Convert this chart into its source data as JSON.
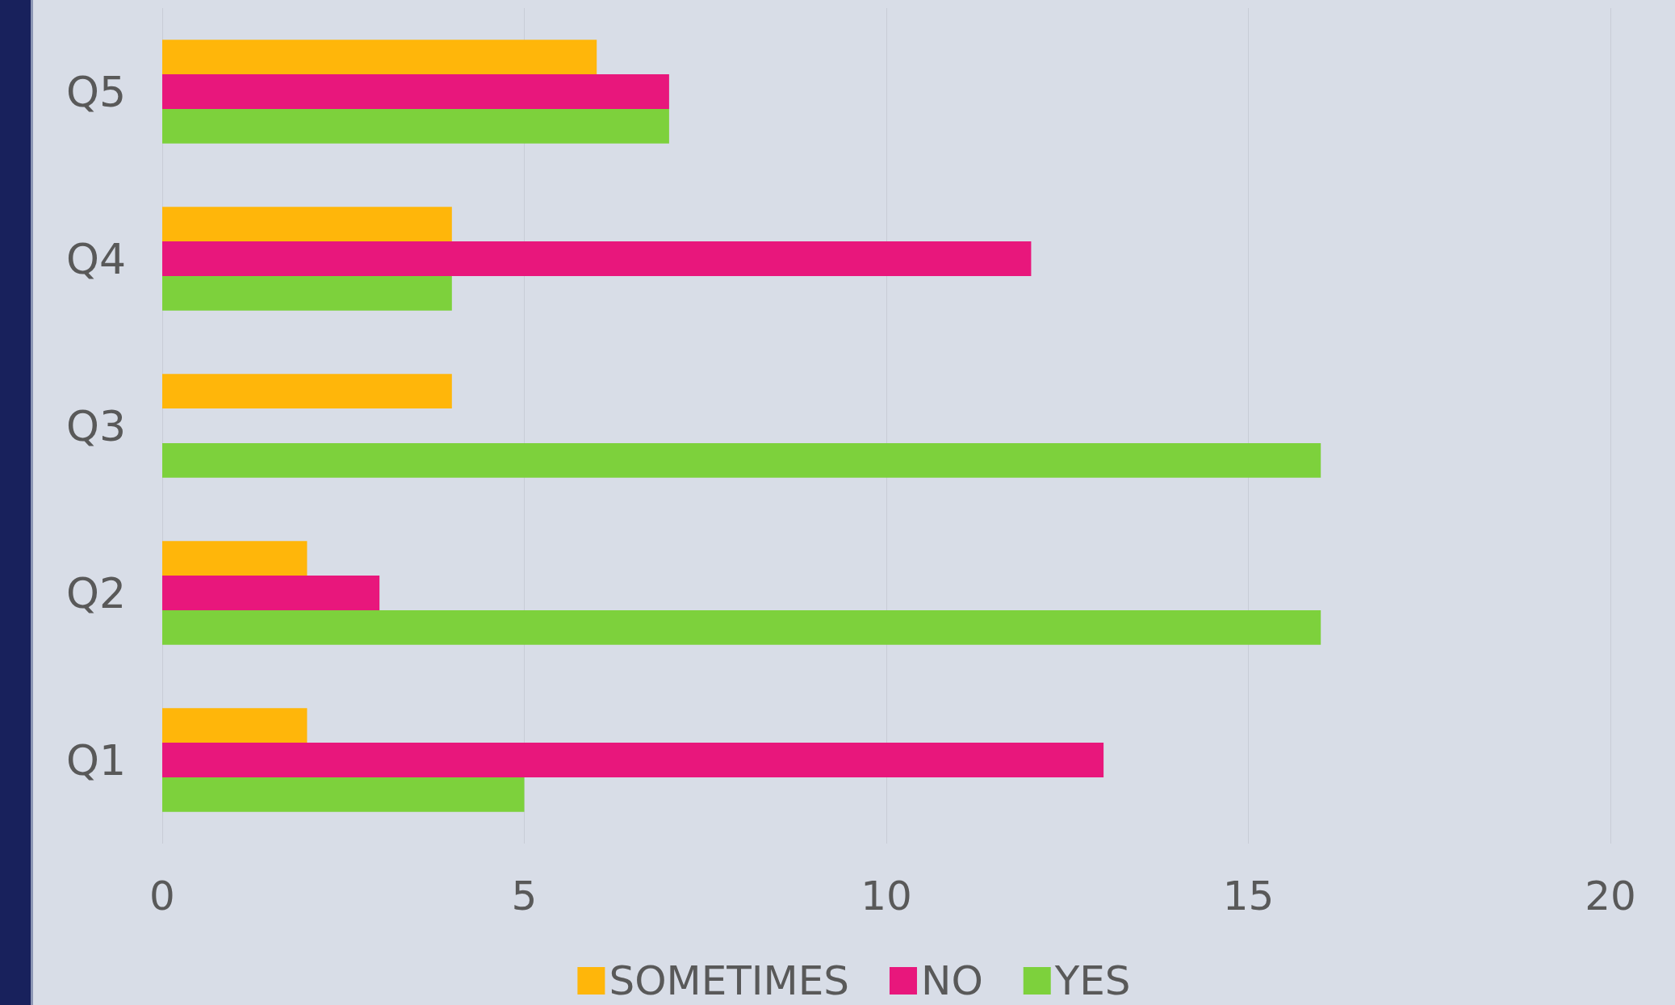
{
  "chart_data": {
    "type": "bar",
    "orientation": "horizontal",
    "categories": [
      "Q5",
      "Q4",
      "Q3",
      "Q2",
      "Q1"
    ],
    "series": [
      {
        "name": "SOMETIMES",
        "color": "#ffb60a",
        "values": [
          6,
          4,
          4,
          2,
          2
        ]
      },
      {
        "name": "NO",
        "color": "#e8177c",
        "values": [
          7,
          12,
          0,
          3,
          13
        ]
      },
      {
        "name": "YES",
        "color": "#7dd13c",
        "values": [
          7,
          4,
          16,
          16,
          5
        ]
      }
    ],
    "xlim": [
      0,
      20
    ],
    "xticks": [
      0,
      5,
      10,
      15,
      20
    ],
    "grid": "x",
    "legend": "bottom"
  }
}
